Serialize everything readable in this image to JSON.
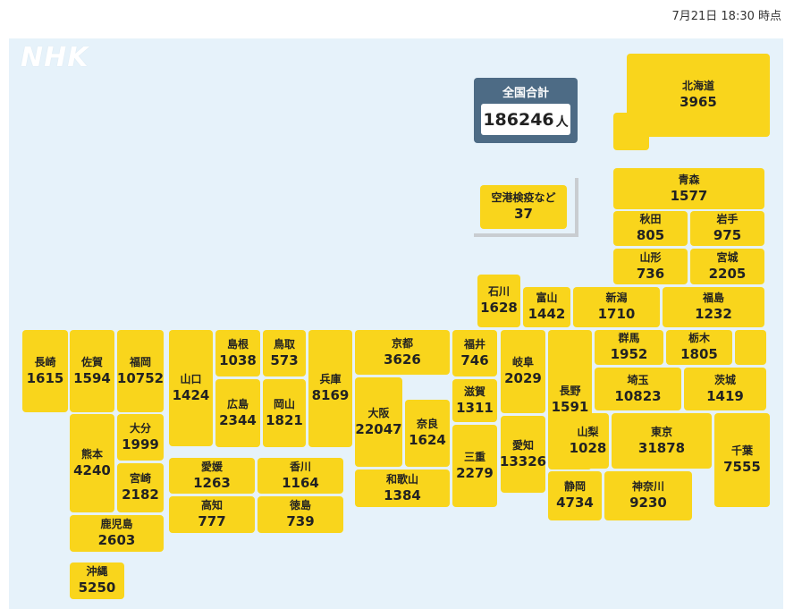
{
  "header": {
    "timestamp": "7月21日 18:30 時点"
  },
  "logo": "NHK",
  "total": {
    "label": "全国合計",
    "value": "186246",
    "unit": "人"
  },
  "airport": {
    "name": "空港検疫など",
    "value": "37"
  },
  "colors": {
    "tile": "#f9d51c",
    "background": "#e6f2fa",
    "total_panel": "#4d6b85"
  },
  "prefectures": {
    "hokkaido": {
      "name": "北海道",
      "value": "3965"
    },
    "aomori": {
      "name": "青森",
      "value": "1577"
    },
    "akita": {
      "name": "秋田",
      "value": "805"
    },
    "iwate": {
      "name": "岩手",
      "value": "975"
    },
    "yamagata": {
      "name": "山形",
      "value": "736"
    },
    "miyagi": {
      "name": "宮城",
      "value": "2205"
    },
    "ishikawa": {
      "name": "石川",
      "value": "1628"
    },
    "toyama": {
      "name": "富山",
      "value": "1442"
    },
    "niigata": {
      "name": "新潟",
      "value": "1710"
    },
    "fukushima": {
      "name": "福島",
      "value": "1232"
    },
    "nagasaki": {
      "name": "長崎",
      "value": "1615"
    },
    "saga": {
      "name": "佐賀",
      "value": "1594"
    },
    "fukuoka": {
      "name": "福岡",
      "value": "10752"
    },
    "yamaguchi": {
      "name": "山口",
      "value": "1424"
    },
    "shimane": {
      "name": "島根",
      "value": "1038"
    },
    "tottori": {
      "name": "鳥取",
      "value": "573"
    },
    "hyogo": {
      "name": "兵庫",
      "value": "8169"
    },
    "kyoto": {
      "name": "京都",
      "value": "3626"
    },
    "fukui": {
      "name": "福井",
      "value": "746"
    },
    "gifu": {
      "name": "岐阜",
      "value": "2029"
    },
    "nagano": {
      "name": "長野",
      "value": "1591"
    },
    "gunma": {
      "name": "群馬",
      "value": "1952"
    },
    "tochigi": {
      "name": "栃木",
      "value": "1805"
    },
    "hiroshima": {
      "name": "広島",
      "value": "2344"
    },
    "okayama": {
      "name": "岡山",
      "value": "1821"
    },
    "shiga": {
      "name": "滋賀",
      "value": "1311"
    },
    "saitama": {
      "name": "埼玉",
      "value": "10823"
    },
    "ibaraki": {
      "name": "茨城",
      "value": "1419"
    },
    "oita": {
      "name": "大分",
      "value": "1999"
    },
    "kumamoto": {
      "name": "熊本",
      "value": "4240"
    },
    "osaka": {
      "name": "大阪",
      "value": "22047"
    },
    "nara": {
      "name": "奈良",
      "value": "1624"
    },
    "mie": {
      "name": "三重",
      "value": "2279"
    },
    "aichi": {
      "name": "愛知",
      "value": "13326"
    },
    "yamanashi": {
      "name": "山梨",
      "value": "1028"
    },
    "tokyo": {
      "name": "東京",
      "value": "31878"
    },
    "chiba": {
      "name": "千葉",
      "value": "7555"
    },
    "miyazaki": {
      "name": "宮崎",
      "value": "2182"
    },
    "ehime": {
      "name": "愛媛",
      "value": "1263"
    },
    "kagawa": {
      "name": "香川",
      "value": "1164"
    },
    "wakayama": {
      "name": "和歌山",
      "value": "1384"
    },
    "shizuoka": {
      "name": "静岡",
      "value": "4734"
    },
    "kanagawa": {
      "name": "神奈川",
      "value": "9230"
    },
    "kochi": {
      "name": "高知",
      "value": "777"
    },
    "tokushima": {
      "name": "徳島",
      "value": "739"
    },
    "kagoshima": {
      "name": "鹿児島",
      "value": "2603"
    },
    "okinawa": {
      "name": "沖縄",
      "value": "5250"
    }
  }
}
